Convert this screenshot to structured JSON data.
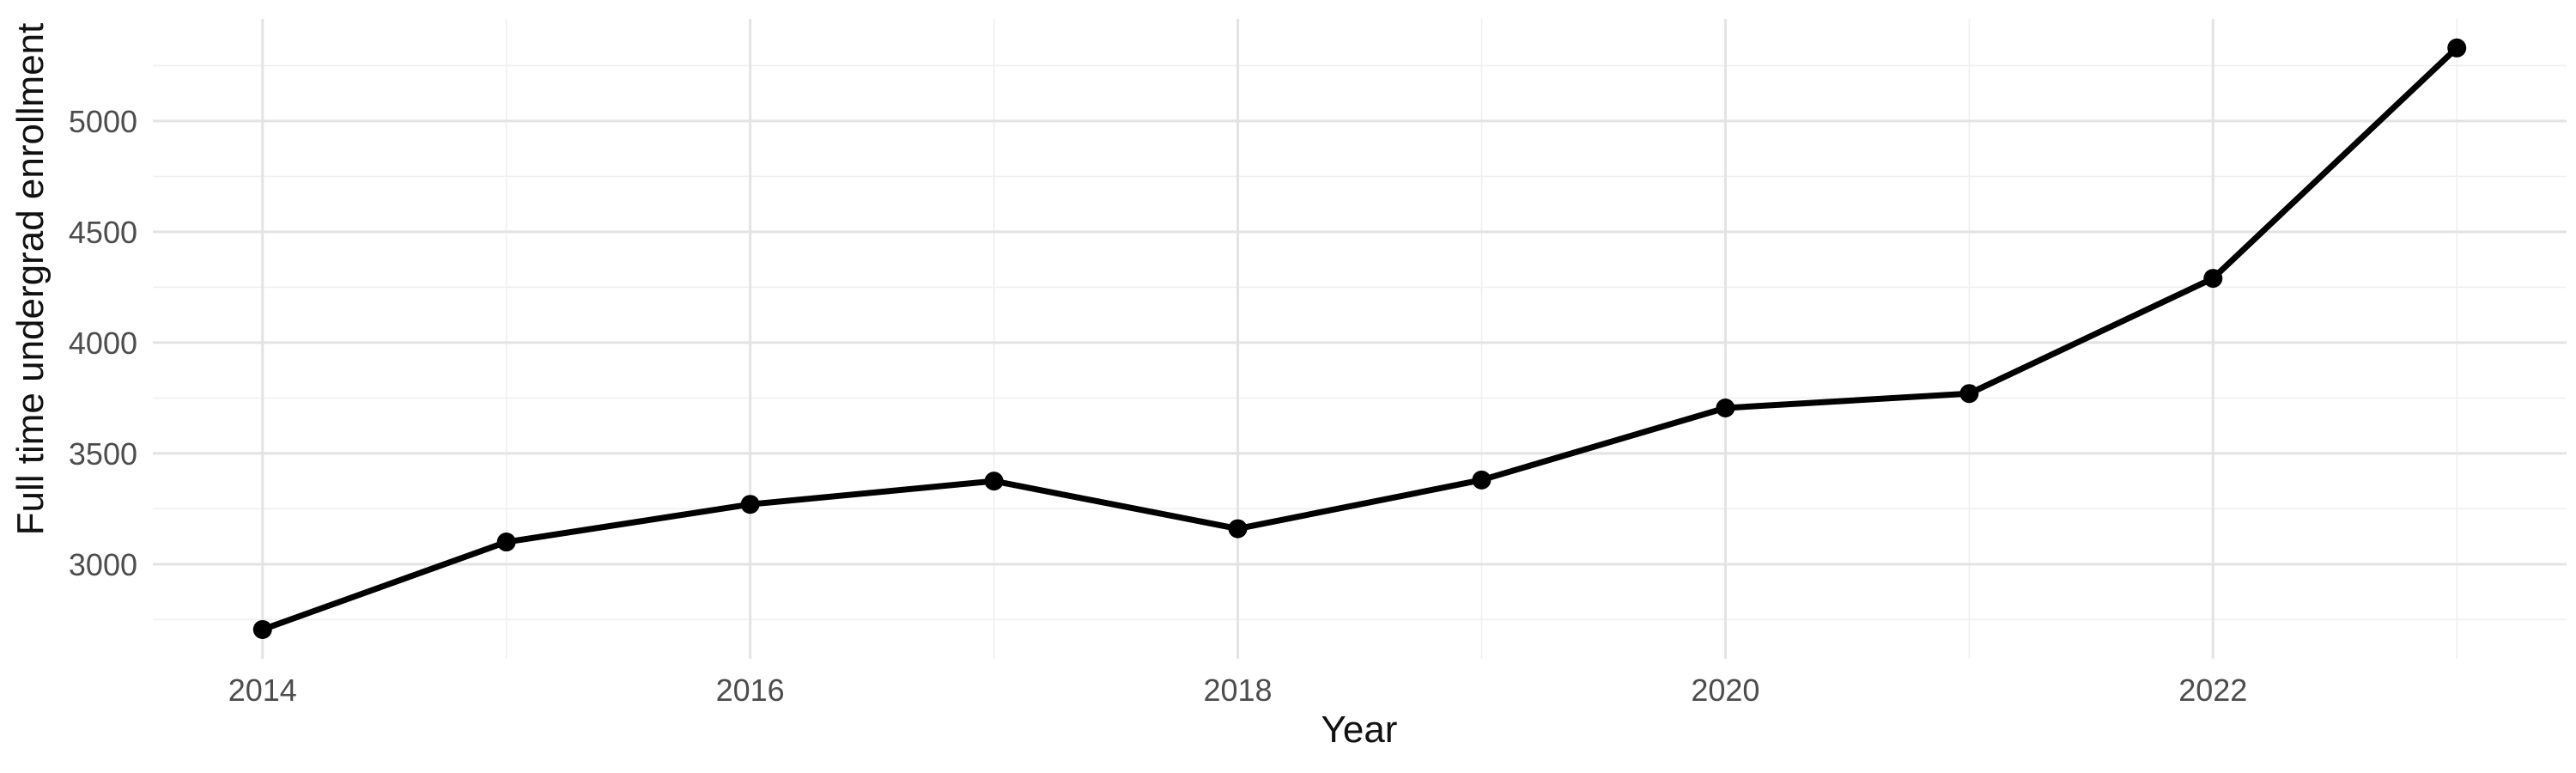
{
  "figure": {
    "background": "#FFFFFF"
  },
  "chart_data": {
    "type": "line",
    "title": "",
    "xlabel": "Year",
    "ylabel": "Full time undergrad enrollment",
    "series": [
      {
        "name": "Full time undergrad enrollment",
        "x": [
          2014,
          2015,
          2016,
          2017,
          2018,
          2019,
          2020,
          2021,
          2022,
          2023
        ],
        "values": [
          2705,
          3100,
          3270,
          3375,
          3160,
          3380,
          3705,
          3770,
          4290,
          5330
        ]
      }
    ],
    "xlim": [
      2013.55,
      2023.45
    ],
    "ylim": [
      2573,
      5461
    ],
    "x_major_ticks": [
      2014,
      2016,
      2018,
      2020,
      2022
    ],
    "x_minor_gridlines": [
      2015,
      2017,
      2019,
      2021,
      2023
    ],
    "y_major_ticks": [
      3000,
      3500,
      4000,
      4500,
      5000
    ],
    "y_minor_gridlines": [
      2750,
      3250,
      3750,
      4250,
      4750,
      5250
    ],
    "grid": true,
    "legend_position": "none",
    "line_color": "#000000",
    "point_color": "#000000",
    "point_radius": 11,
    "line_width": 7,
    "tick_label_color": "#4D4D4D",
    "axis_title_color": "#111111",
    "major_grid_color": "#E3E3E3",
    "minor_grid_color": "#EFEFEF"
  }
}
